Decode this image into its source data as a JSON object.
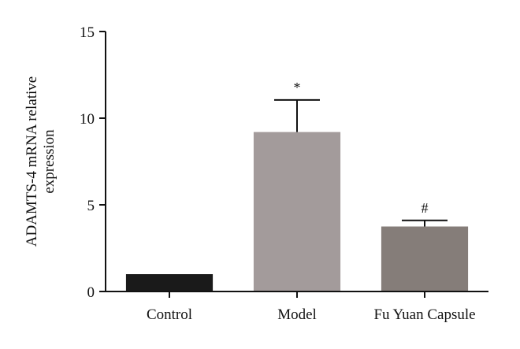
{
  "chart_data": {
    "type": "bar",
    "categories": [
      "Control",
      "Model",
      "Fu Yuan Capsule"
    ],
    "values": [
      1.0,
      9.2,
      3.75
    ],
    "errors": [
      0,
      1.85,
      0.35
    ],
    "annotations": [
      "",
      "*",
      "#"
    ],
    "ylabel_line1": "ADAMTS-4 mRNA relative",
    "ylabel_line2": "expression",
    "ylim": [
      0,
      15
    ],
    "yticks": [
      0,
      5,
      10,
      15
    ],
    "ytick_labels": [
      "0",
      "5",
      "10",
      "15"
    ],
    "bar_colors": [
      "#1a1a1a",
      "#a39b9b",
      "#857d79"
    ],
    "grid": false
  }
}
